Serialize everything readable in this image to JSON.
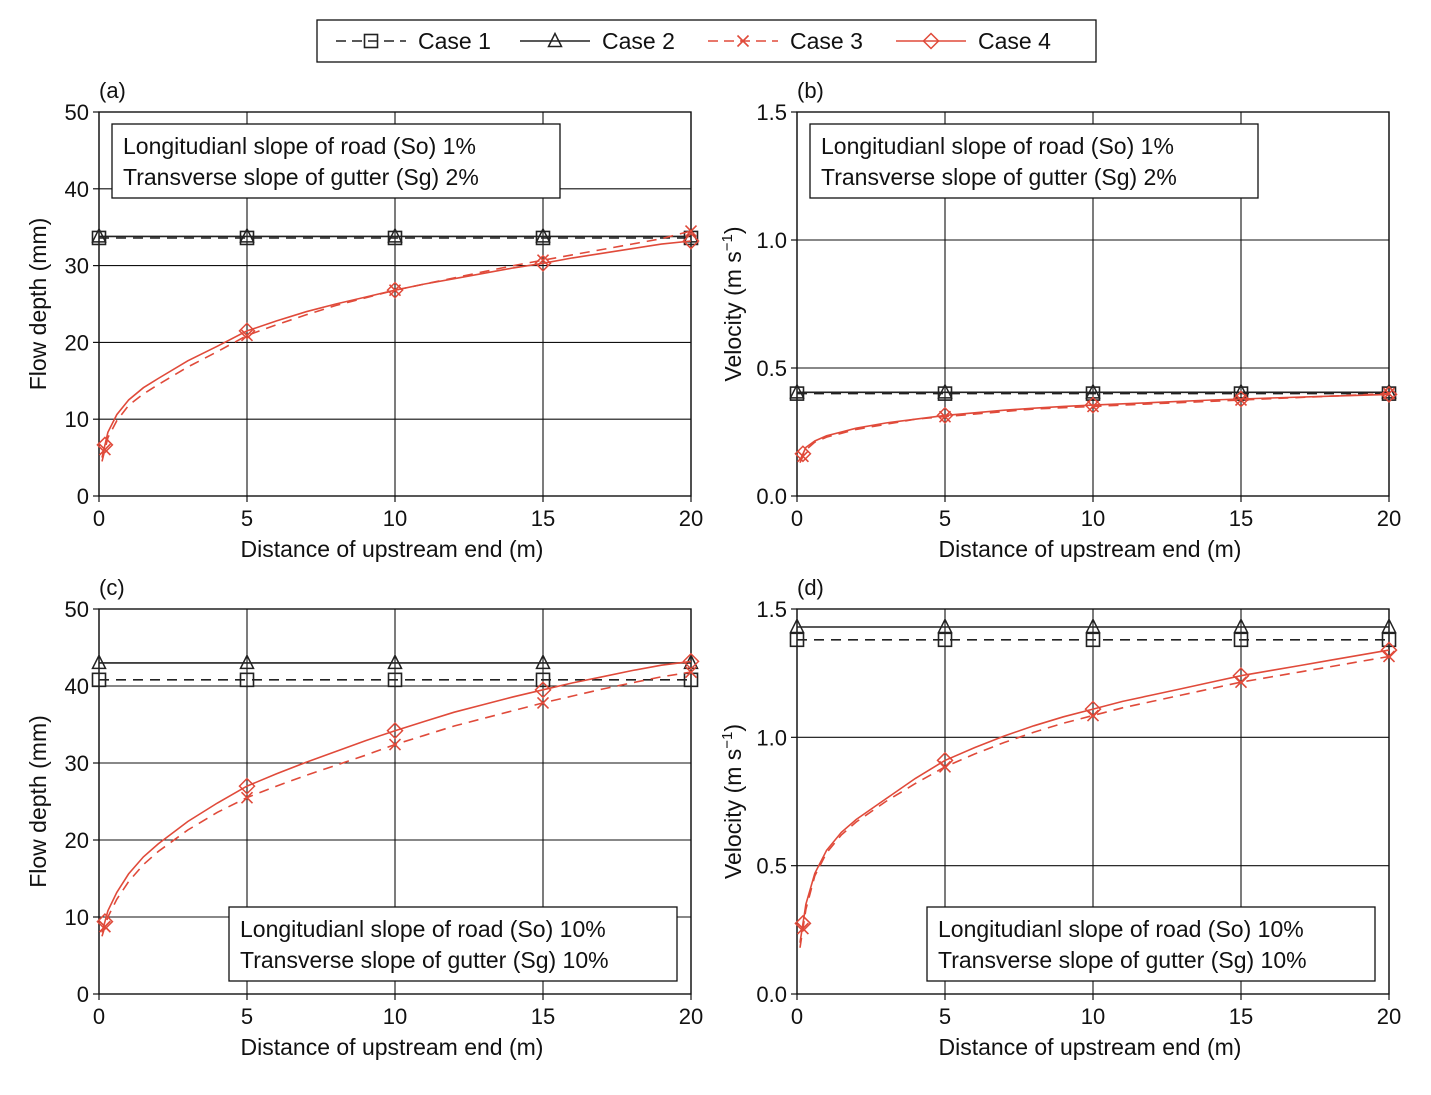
{
  "legend": {
    "entries": [
      {
        "label": "Case 1",
        "marker": "square",
        "dash": true,
        "color": "#222222"
      },
      {
        "label": "Case 2",
        "marker": "triangle",
        "dash": false,
        "color": "#222222"
      },
      {
        "label": "Case 3",
        "marker": "cross",
        "dash": true,
        "color": "#e04a3a"
      },
      {
        "label": "Case 4",
        "marker": "diamond",
        "dash": false,
        "color": "#e04a3a"
      }
    ]
  },
  "colors": {
    "black": "#222222",
    "red": "#e04a3a",
    "grid": "#111111"
  },
  "chart_data": [
    {
      "type": "line",
      "panel_label": "(a)",
      "xlabel": "Distance of upstream end (m)",
      "ylabel_main": "Flow depth (mm)",
      "ylabel_tail": "",
      "ylabel_sup": "",
      "xlim": [
        0,
        20
      ],
      "ylim": [
        0,
        50
      ],
      "xticks": [
        0,
        5,
        10,
        15,
        20
      ],
      "yticks": [
        0,
        10,
        20,
        30,
        40,
        50
      ],
      "ytick_labels": [
        "0",
        "10",
        "20",
        "30",
        "40",
        "50"
      ],
      "annotation_lines": [
        "Longitudianl slope of road (So) 1%",
        "Transverse slope of gutter (Sg) 2%"
      ],
      "annotation_position": "top-left",
      "series": [
        {
          "name": "Case 1",
          "x": [
            0,
            20
          ],
          "y": [
            33.6,
            33.6
          ],
          "marker_x": [
            0,
            5,
            10,
            15,
            20
          ]
        },
        {
          "name": "Case 2",
          "x": [
            0,
            20
          ],
          "y": [
            33.8,
            33.8
          ],
          "marker_x": [
            0,
            5,
            10,
            15,
            20
          ]
        },
        {
          "name": "Case 3",
          "x": [
            0.1,
            0.3,
            0.6,
            1,
            1.5,
            2,
            3,
            4,
            5,
            6,
            7,
            8,
            9,
            10,
            11,
            12,
            13,
            14,
            15,
            16,
            17,
            18,
            19,
            20
          ],
          "y": [
            4.5,
            7.6,
            9.8,
            11.8,
            13.3,
            14.5,
            16.8,
            18.8,
            20.9,
            22.3,
            23.6,
            24.8,
            25.8,
            26.8,
            27.6,
            28.4,
            29.2,
            30.0,
            30.7,
            31.4,
            32.1,
            32.8,
            33.5,
            34.5
          ],
          "marker_x": [
            0.2,
            5,
            10,
            15,
            20
          ]
        },
        {
          "name": "Case 4",
          "x": [
            0.1,
            0.3,
            0.6,
            1,
            1.5,
            2,
            3,
            4,
            5,
            6,
            7,
            8,
            9,
            10,
            11,
            12,
            13,
            14,
            15,
            16,
            17,
            18,
            19,
            20
          ],
          "y": [
            5.0,
            8.3,
            10.6,
            12.5,
            14.1,
            15.3,
            17.6,
            19.5,
            21.5,
            22.8,
            24.0,
            25.0,
            25.9,
            26.8,
            27.6,
            28.3,
            29.0,
            29.7,
            30.3,
            31.0,
            31.6,
            32.2,
            32.8,
            33.2
          ],
          "marker_x": [
            0.2,
            5,
            10,
            15,
            20
          ]
        }
      ]
    },
    {
      "type": "line",
      "panel_label": "(b)",
      "xlabel": "Distance of upstream end (m)",
      "ylabel_main": "Velocity (m s",
      "ylabel_tail": ")",
      "ylabel_sup": "−1",
      "xlim": [
        0,
        20
      ],
      "ylim": [
        0,
        1.5
      ],
      "xticks": [
        0,
        5,
        10,
        15,
        20
      ],
      "yticks": [
        0,
        0.5,
        1.0,
        1.5
      ],
      "ytick_labels": [
        "0.0",
        "0.5",
        "1.0",
        "1.5"
      ],
      "annotation_lines": [
        "Longitudianl slope of road (So) 1%",
        "Transverse slope of gutter (Sg) 2%"
      ],
      "annotation_position": "top-left",
      "series": [
        {
          "name": "Case 1",
          "x": [
            0,
            20
          ],
          "y": [
            0.4,
            0.4
          ],
          "marker_x": [
            0,
            5,
            10,
            15,
            20
          ]
        },
        {
          "name": "Case 2",
          "x": [
            0,
            20
          ],
          "y": [
            0.405,
            0.405
          ],
          "marker_x": [
            0,
            5,
            10,
            15,
            20
          ]
        },
        {
          "name": "Case 3",
          "x": [
            0.1,
            0.3,
            0.6,
            1,
            1.5,
            2,
            3,
            4,
            5,
            6,
            7,
            8,
            9,
            10,
            12,
            14,
            16,
            18,
            20
          ],
          "y": [
            0.13,
            0.18,
            0.21,
            0.23,
            0.245,
            0.26,
            0.28,
            0.3,
            0.31,
            0.32,
            0.33,
            0.34,
            0.345,
            0.35,
            0.36,
            0.37,
            0.38,
            0.39,
            0.4
          ],
          "marker_x": [
            0.2,
            5,
            10,
            15,
            20
          ]
        },
        {
          "name": "Case 4",
          "x": [
            0.1,
            0.3,
            0.6,
            1,
            1.5,
            2,
            3,
            4,
            5,
            6,
            7,
            8,
            9,
            10,
            12,
            14,
            16,
            18,
            20
          ],
          "y": [
            0.14,
            0.19,
            0.215,
            0.235,
            0.25,
            0.265,
            0.285,
            0.3,
            0.315,
            0.325,
            0.335,
            0.343,
            0.35,
            0.355,
            0.365,
            0.375,
            0.383,
            0.39,
            0.397
          ],
          "marker_x": [
            0.2,
            5,
            10,
            15,
            20
          ]
        }
      ]
    },
    {
      "type": "line",
      "panel_label": "(c)",
      "xlabel": "Distance of upstream end (m)",
      "ylabel_main": "Flow depth (mm)",
      "ylabel_tail": "",
      "ylabel_sup": "",
      "xlim": [
        0,
        20
      ],
      "ylim": [
        0,
        50
      ],
      "xticks": [
        0,
        5,
        10,
        15,
        20
      ],
      "yticks": [
        0,
        10,
        20,
        30,
        40,
        50
      ],
      "ytick_labels": [
        "0",
        "10",
        "20",
        "30",
        "40",
        "50"
      ],
      "annotation_lines": [
        "Longitudianl slope of road (So) 10%",
        "Transverse slope of gutter (Sg) 10%"
      ],
      "annotation_position": "bottom-right",
      "series": [
        {
          "name": "Case 1",
          "x": [
            0,
            20
          ],
          "y": [
            40.8,
            40.8
          ],
          "marker_x": [
            0,
            5,
            10,
            15,
            20
          ]
        },
        {
          "name": "Case 2",
          "x": [
            0,
            20
          ],
          "y": [
            43.0,
            43.0
          ],
          "marker_x": [
            0,
            5,
            10,
            15,
            20
          ]
        },
        {
          "name": "Case 3",
          "x": [
            0.1,
            0.3,
            0.6,
            1,
            1.5,
            2,
            3,
            4,
            5,
            6,
            7,
            8,
            9,
            10,
            11,
            12,
            13,
            14,
            15,
            16,
            17,
            18,
            19,
            20
          ],
          "y": [
            7.5,
            10.0,
            12.3,
            14.6,
            16.8,
            18.5,
            21.3,
            23.6,
            25.5,
            27.0,
            28.4,
            29.7,
            31.0,
            32.4,
            33.6,
            34.8,
            35.8,
            36.8,
            37.8,
            38.7,
            39.6,
            40.4,
            41.2,
            41.8
          ],
          "marker_x": [
            0.2,
            5,
            10,
            15,
            20
          ]
        },
        {
          "name": "Case 4",
          "x": [
            0.1,
            0.3,
            0.6,
            1,
            1.5,
            2,
            3,
            4,
            5,
            6,
            7,
            8,
            9,
            10,
            11,
            12,
            13,
            14,
            15,
            16,
            17,
            18,
            19,
            20
          ],
          "y": [
            8.0,
            10.8,
            13.2,
            15.6,
            17.8,
            19.5,
            22.4,
            24.8,
            27.0,
            28.6,
            30.1,
            31.5,
            32.9,
            34.2,
            35.4,
            36.6,
            37.6,
            38.6,
            39.5,
            40.4,
            41.2,
            42.0,
            42.7,
            43.2
          ],
          "marker_x": [
            0.2,
            5,
            10,
            15,
            20
          ]
        }
      ]
    },
    {
      "type": "line",
      "panel_label": "(d)",
      "xlabel": "Distance of upstream end (m)",
      "ylabel_main": "Velocity (m s",
      "ylabel_tail": ")",
      "ylabel_sup": "−1",
      "xlim": [
        0,
        20
      ],
      "ylim": [
        0,
        1.5
      ],
      "xticks": [
        0,
        5,
        10,
        15,
        20
      ],
      "yticks": [
        0,
        0.5,
        1.0,
        1.5
      ],
      "ytick_labels": [
        "0.0",
        "0.5",
        "1.0",
        "1.5"
      ],
      "annotation_lines": [
        "Longitudianl slope of road (So) 10%",
        "Transverse slope of gutter (Sg) 10%"
      ],
      "annotation_position": "bottom-right",
      "series": [
        {
          "name": "Case 1",
          "x": [
            0,
            20
          ],
          "y": [
            1.38,
            1.38
          ],
          "marker_x": [
            0,
            5,
            10,
            15,
            20
          ]
        },
        {
          "name": "Case 2",
          "x": [
            0,
            20
          ],
          "y": [
            1.43,
            1.43
          ],
          "marker_x": [
            0,
            5,
            10,
            15,
            20
          ]
        },
        {
          "name": "Case 3",
          "x": [
            0.1,
            0.3,
            0.6,
            1,
            1.5,
            2,
            3,
            4,
            5,
            6,
            7,
            8,
            9,
            10,
            11,
            12,
            13,
            14,
            15,
            16,
            17,
            18,
            19,
            20
          ],
          "y": [
            0.18,
            0.33,
            0.46,
            0.55,
            0.62,
            0.67,
            0.75,
            0.82,
            0.885,
            0.935,
            0.98,
            1.02,
            1.055,
            1.085,
            1.115,
            1.14,
            1.165,
            1.19,
            1.215,
            1.235,
            1.255,
            1.275,
            1.295,
            1.315
          ],
          "marker_x": [
            0.2,
            5,
            10,
            15,
            20
          ]
        },
        {
          "name": "Case 4",
          "x": [
            0.1,
            0.3,
            0.6,
            1,
            1.5,
            2,
            3,
            4,
            5,
            6,
            7,
            8,
            9,
            10,
            11,
            12,
            13,
            14,
            15,
            16,
            17,
            18,
            19,
            20
          ],
          "y": [
            0.2,
            0.35,
            0.47,
            0.56,
            0.63,
            0.68,
            0.76,
            0.84,
            0.91,
            0.96,
            1.005,
            1.045,
            1.08,
            1.11,
            1.14,
            1.165,
            1.19,
            1.215,
            1.24,
            1.26,
            1.28,
            1.3,
            1.32,
            1.34
          ],
          "marker_x": [
            0.2,
            5,
            10,
            15,
            20
          ]
        }
      ]
    }
  ]
}
